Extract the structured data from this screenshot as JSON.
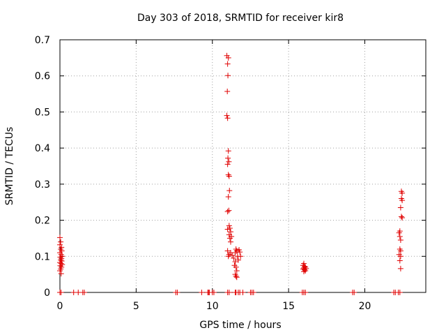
{
  "chart_data": {
    "type": "scatter",
    "title": "Day 303 of 2018, SRMTID for receiver kir8",
    "xlabel": "GPS time / hours",
    "ylabel": "SRMTID / TECUs",
    "xlim": [
      0,
      24
    ],
    "ylim": [
      0,
      0.7
    ],
    "xticks": [
      0,
      5,
      10,
      15,
      20
    ],
    "xtick_labels": [
      "0",
      "5",
      "10",
      "15",
      "20"
    ],
    "yticks": [
      0,
      0.1,
      0.2,
      0.3,
      0.4,
      0.5,
      0.6,
      0.7
    ],
    "ytick_labels": [
      "0",
      "0.1",
      "0.2",
      "0.3",
      "0.4",
      "0.5",
      "0.6",
      "0.7"
    ],
    "grid": true,
    "marker": "+",
    "color": "#e00000",
    "series": [
      {
        "name": "SRMTID",
        "points": [
          [
            0.0,
            0.152
          ],
          [
            0.05,
            0.14
          ],
          [
            0.0,
            0.132
          ],
          [
            0.1,
            0.125
          ],
          [
            0.05,
            0.12
          ],
          [
            0.12,
            0.115
          ],
          [
            0.0,
            0.11
          ],
          [
            0.08,
            0.105
          ],
          [
            0.15,
            0.1
          ],
          [
            0.02,
            0.098
          ],
          [
            0.1,
            0.094
          ],
          [
            0.05,
            0.09
          ],
          [
            0.12,
            0.087
          ],
          [
            0.0,
            0.083
          ],
          [
            0.08,
            0.08
          ],
          [
            0.15,
            0.077
          ],
          [
            0.02,
            0.074
          ],
          [
            0.1,
            0.07
          ],
          [
            0.05,
            0.065
          ],
          [
            0.0,
            0.06
          ],
          [
            0.08,
            0.052
          ],
          [
            0.0,
            0
          ],
          [
            0.07,
            0
          ],
          [
            0.9,
            0
          ],
          [
            1.2,
            0
          ],
          [
            1.5,
            0
          ],
          [
            1.6,
            0
          ],
          [
            7.6,
            0
          ],
          [
            7.7,
            0
          ],
          [
            9.3,
            0
          ],
          [
            9.7,
            0
          ],
          [
            9.75,
            0
          ],
          [
            9.8,
            0
          ],
          [
            10.0,
            0
          ],
          [
            10.1,
            0
          ],
          [
            11.0,
            0
          ],
          [
            11.1,
            0
          ],
          [
            11.5,
            0
          ],
          [
            11.55,
            0
          ],
          [
            11.7,
            0
          ],
          [
            11.8,
            0
          ],
          [
            12.0,
            0
          ],
          [
            12.5,
            0
          ],
          [
            12.6,
            0
          ],
          [
            12.7,
            0
          ],
          [
            15.9,
            0
          ],
          [
            16.0,
            0
          ],
          [
            16.1,
            0
          ],
          [
            19.2,
            0
          ],
          [
            19.3,
            0
          ],
          [
            21.9,
            0
          ],
          [
            22.0,
            0
          ],
          [
            22.2,
            0
          ],
          [
            22.3,
            0
          ],
          [
            10.95,
            0.656
          ],
          [
            11.05,
            0.65
          ],
          [
            11.0,
            0.633
          ],
          [
            11.02,
            0.601
          ],
          [
            10.98,
            0.557
          ],
          [
            10.95,
            0.49
          ],
          [
            11.0,
            0.483
          ],
          [
            11.05,
            0.392
          ],
          [
            11.02,
            0.372
          ],
          [
            11.08,
            0.362
          ],
          [
            11.0,
            0.355
          ],
          [
            11.05,
            0.326
          ],
          [
            11.1,
            0.322
          ],
          [
            11.12,
            0.282
          ],
          [
            11.05,
            0.265
          ],
          [
            11.08,
            0.227
          ],
          [
            11.0,
            0.224
          ],
          [
            11.1,
            0.185
          ],
          [
            11.15,
            0.178
          ],
          [
            11.0,
            0.175
          ],
          [
            11.2,
            0.168
          ],
          [
            11.1,
            0.16
          ],
          [
            11.25,
            0.155
          ],
          [
            11.15,
            0.15
          ],
          [
            11.2,
            0.14
          ],
          [
            11.0,
            0.115
          ],
          [
            11.1,
            0.105
          ],
          [
            11.2,
            0.11
          ],
          [
            11.3,
            0.103
          ],
          [
            11.05,
            0.1
          ],
          [
            11.4,
            0.095
          ],
          [
            11.5,
            0.11
          ],
          [
            11.55,
            0.12
          ],
          [
            11.6,
            0.115
          ],
          [
            11.65,
            0.1
          ],
          [
            11.7,
            0.09
          ],
          [
            11.75,
            0.118
          ],
          [
            11.8,
            0.112
          ],
          [
            11.85,
            0.1
          ],
          [
            11.5,
            0.085
          ],
          [
            11.45,
            0.075
          ],
          [
            11.55,
            0.07
          ],
          [
            11.6,
            0.06
          ],
          [
            11.5,
            0.05
          ],
          [
            11.55,
            0.045
          ],
          [
            11.6,
            0.042
          ],
          [
            16.0,
            0.08
          ],
          [
            15.95,
            0.075
          ],
          [
            16.05,
            0.072
          ],
          [
            16.1,
            0.07
          ],
          [
            16.0,
            0.068
          ],
          [
            16.15,
            0.066
          ],
          [
            15.95,
            0.065
          ],
          [
            16.05,
            0.063
          ],
          [
            16.1,
            0.06
          ],
          [
            16.0,
            0.058
          ],
          [
            22.4,
            0.28
          ],
          [
            22.45,
            0.275
          ],
          [
            22.4,
            0.26
          ],
          [
            22.45,
            0.255
          ],
          [
            22.35,
            0.235
          ],
          [
            22.4,
            0.21
          ],
          [
            22.45,
            0.207
          ],
          [
            22.3,
            0.17
          ],
          [
            22.25,
            0.165
          ],
          [
            22.3,
            0.155
          ],
          [
            22.35,
            0.145
          ],
          [
            22.3,
            0.12
          ],
          [
            22.35,
            0.115
          ],
          [
            22.25,
            0.105
          ],
          [
            22.35,
            0.1
          ],
          [
            22.3,
            0.088
          ],
          [
            22.35,
            0.066
          ]
        ]
      }
    ]
  }
}
